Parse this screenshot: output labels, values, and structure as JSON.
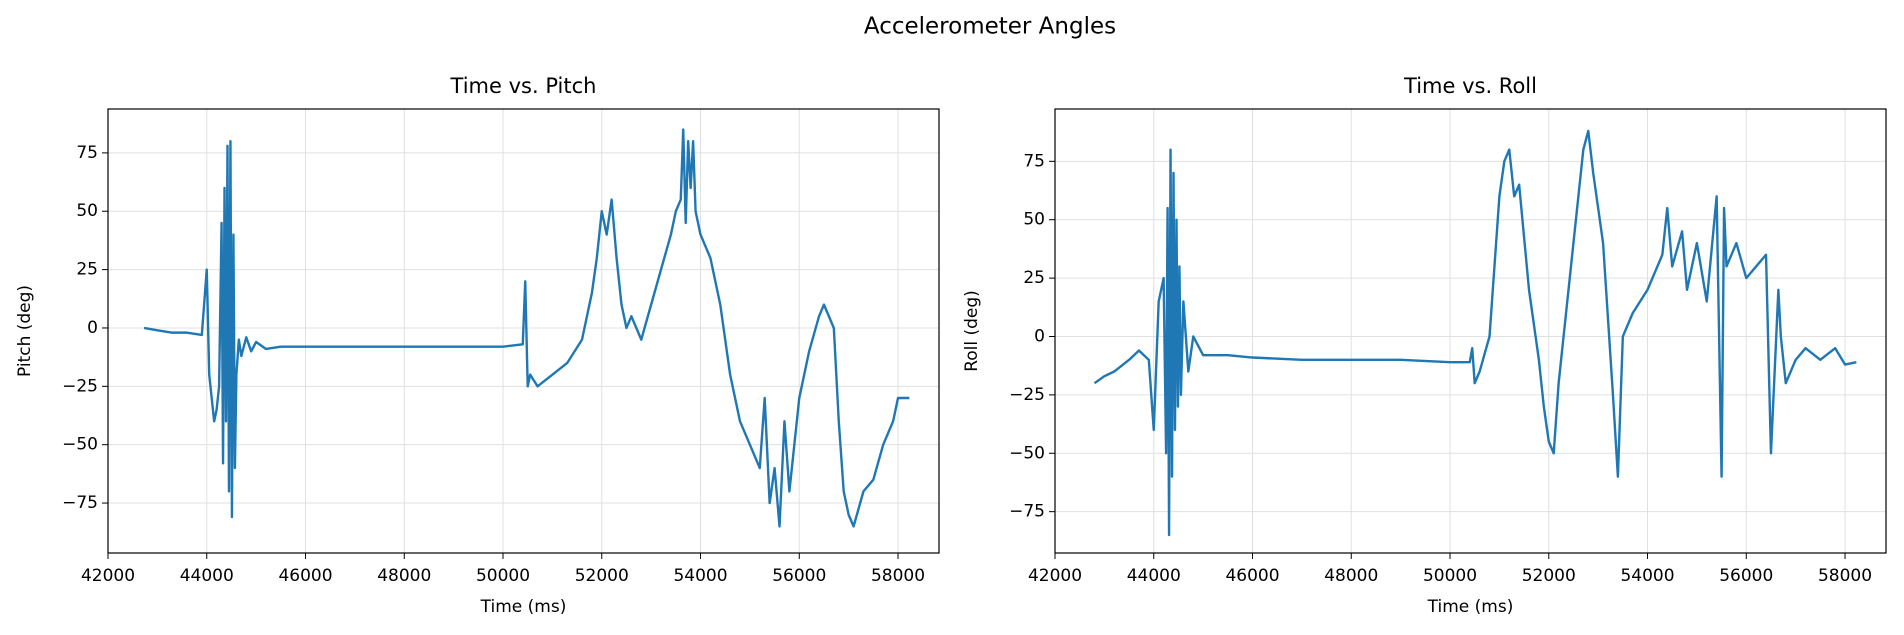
{
  "title": "Accelerometer Angles",
  "chart_data": [
    {
      "type": "line",
      "title": "Time vs. Pitch",
      "xlabel": "Time (ms)",
      "ylabel": "Pitch (deg)",
      "grid": true,
      "xlim": [
        42000,
        58830
      ],
      "ylim": [
        -96.4,
        93.8
      ],
      "xticks": [
        42000,
        44000,
        46000,
        48000,
        50000,
        52000,
        54000,
        56000,
        58000
      ],
      "yticks": [
        {
          "value": -75,
          "label": "−75"
        },
        {
          "value": -50,
          "label": "−50"
        },
        {
          "value": -25,
          "label": "−25"
        },
        0,
        25,
        50,
        75
      ],
      "series": [
        {
          "color": "#1f77b4",
          "x": [
            42730,
            43000,
            43300,
            43600,
            43900,
            44000,
            44050,
            44100,
            44150,
            44200,
            44250,
            44300,
            44330,
            44360,
            44390,
            44420,
            44450,
            44480,
            44510,
            44540,
            44570,
            44600,
            44650,
            44700,
            44800,
            44900,
            45000,
            45200,
            45500,
            46000,
            47000,
            48000,
            49000,
            50000,
            50400,
            50450,
            50500,
            50550,
            50700,
            51000,
            51300,
            51600,
            51800,
            51900,
            52000,
            52100,
            52200,
            52300,
            52400,
            52500,
            52600,
            52800,
            53000,
            53200,
            53400,
            53500,
            53600,
            53650,
            53700,
            53750,
            53800,
            53850,
            53900,
            54000,
            54200,
            54400,
            54600,
            54800,
            55000,
            55200,
            55300,
            55400,
            55500,
            55600,
            55700,
            55800,
            56000,
            56200,
            56400,
            56500,
            56700,
            56800,
            56900,
            57000,
            57100,
            57300,
            57500,
            57700,
            57900,
            58000,
            58230
          ],
          "values": [
            0,
            -1,
            -2,
            -2,
            -3,
            25,
            -20,
            -30,
            -40,
            -35,
            -25,
            45,
            -58,
            60,
            -40,
            78,
            -70,
            80,
            -81,
            40,
            -60,
            -20,
            -5,
            -12,
            -4,
            -10,
            -6,
            -9,
            -8,
            -8,
            -8,
            -8,
            -8,
            -8,
            -7,
            20,
            -25,
            -20,
            -25,
            -20,
            -15,
            -5,
            15,
            30,
            50,
            40,
            55,
            30,
            10,
            0,
            5,
            -5,
            10,
            25,
            40,
            50,
            55,
            85,
            45,
            80,
            60,
            80,
            50,
            40,
            30,
            10,
            -20,
            -40,
            -50,
            -60,
            -30,
            -75,
            -60,
            -85,
            -40,
            -70,
            -30,
            -10,
            5,
            10,
            0,
            -40,
            -70,
            -80,
            -85,
            -70,
            -65,
            -50,
            -40,
            -30,
            -30
          ]
        }
      ]
    },
    {
      "type": "line",
      "title": "Time vs. Roll",
      "xlabel": "Time (ms)",
      "ylabel": "Roll (deg)",
      "grid": true,
      "xlim": [
        42000,
        58830
      ],
      "ylim": [
        -92.7,
        97.4
      ],
      "xticks": [
        42000,
        44000,
        46000,
        48000,
        50000,
        52000,
        54000,
        56000,
        58000
      ],
      "yticks": [
        {
          "value": -75,
          "label": "−75"
        },
        {
          "value": -50,
          "label": "−50"
        },
        {
          "value": -25,
          "label": "−25"
        },
        0,
        25,
        50,
        75
      ],
      "series": [
        {
          "color": "#1f77b4",
          "x": [
            42800,
            43000,
            43200,
            43500,
            43700,
            43900,
            44000,
            44100,
            44200,
            44250,
            44280,
            44310,
            44340,
            44370,
            44400,
            44430,
            44460,
            44490,
            44520,
            44550,
            44600,
            44700,
            44800,
            45000,
            45500,
            46000,
            47000,
            48000,
            49000,
            50000,
            50400,
            50450,
            50500,
            50600,
            50800,
            51000,
            51100,
            51200,
            51300,
            51400,
            51600,
            51800,
            51900,
            52000,
            52100,
            52200,
            52300,
            52500,
            52700,
            52800,
            52900,
            53100,
            53300,
            53400,
            53500,
            53700,
            54000,
            54200,
            54300,
            54400,
            54500,
            54700,
            54800,
            55000,
            55200,
            55400,
            55500,
            55550,
            55600,
            55800,
            56000,
            56200,
            56400,
            56500,
            56650,
            56700,
            56800,
            57000,
            57200,
            57500,
            57800,
            58000,
            58230
          ],
          "values": [
            -20,
            -17,
            -15,
            -10,
            -6,
            -10,
            -40,
            15,
            25,
            -50,
            55,
            -85,
            80,
            -60,
            70,
            -40,
            50,
            -30,
            30,
            -25,
            15,
            -15,
            0,
            -8,
            -8,
            -9,
            -10,
            -10,
            -10,
            -11,
            -11,
            -5,
            -20,
            -15,
            0,
            60,
            75,
            80,
            60,
            65,
            20,
            -10,
            -30,
            -45,
            -50,
            -20,
            0,
            40,
            80,
            88,
            70,
            40,
            -25,
            -60,
            0,
            10,
            20,
            30,
            35,
            55,
            30,
            45,
            20,
            40,
            15,
            60,
            -60,
            55,
            30,
            40,
            25,
            30,
            35,
            -50,
            20,
            0,
            -20,
            -10,
            -5,
            -10,
            -5,
            -12,
            -11
          ]
        }
      ]
    }
  ]
}
